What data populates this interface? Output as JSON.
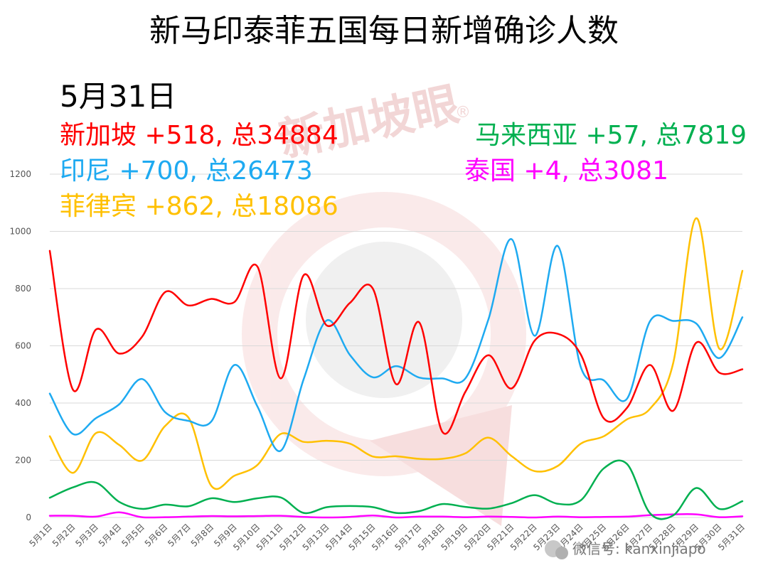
{
  "chart_data": {
    "type": "line",
    "title": "新马印泰菲五国每日新增确诊人数",
    "date_label": "5月31日",
    "ylim": [
      0,
      1200
    ],
    "yticks": [
      0,
      200,
      400,
      600,
      800,
      1000,
      1200
    ],
    "grid": true,
    "categories": [
      "5月1日",
      "5月2日",
      "5月3日",
      "5月4日",
      "5月5日",
      "5月6日",
      "5月7日",
      "5月8日",
      "5月9日",
      "5月10日",
      "5月11日",
      "5月12日",
      "5月13日",
      "5月14日",
      "5月15日",
      "5月16日",
      "5月17日",
      "5月18日",
      "5月19日",
      "5月20日",
      "5月21日",
      "5月22日",
      "5月23日",
      "5月24日",
      "5月25日",
      "5月26日",
      "5月27日",
      "5月28日",
      "5月29日",
      "5月30日",
      "5月31日"
    ],
    "series": [
      {
        "name": "新加坡",
        "color": "#ff0000",
        "values": [
          932,
          447,
          657,
          573,
          632,
          788,
          741,
          764,
          753,
          876,
          486,
          847,
          671,
          750,
          799,
          466,
          682,
          300,
          439,
          567,
          451,
          618,
          642,
          570,
          346,
          383,
          533,
          373,
          611,
          506,
          518
        ],
        "summary": "新加坡 +518, 总34884"
      },
      {
        "name": "印尼",
        "color": "#1eaaf1",
        "values": [
          433,
          292,
          347,
          395,
          484,
          368,
          338,
          336,
          533,
          387,
          233,
          484,
          689,
          568,
          490,
          529,
          489,
          486,
          486,
          693,
          973,
          635,
          949,
          526,
          479,
          415,
          686,
          687,
          678,
          557,
          700
        ],
        "summary": "印尼 +700, 总26473"
      },
      {
        "name": "菲律宾",
        "color": "#ffc000",
        "values": [
          284,
          156,
          295,
          254,
          199,
          320,
          350,
          110,
          146,
          184,
          292,
          264,
          268,
          258,
          213,
          214,
          205,
          205,
          224,
          279,
          215,
          162,
          180,
          258,
          284,
          343,
          380,
          539,
          1046,
          590,
          862
        ],
        "summary": "菲律宾 +862, 总18086"
      },
      {
        "name": "马来西亚",
        "color": "#00b050",
        "values": [
          69,
          105,
          122,
          55,
          30,
          45,
          39,
          67,
          54,
          67,
          70,
          16,
          36,
          40,
          36,
          16,
          22,
          47,
          37,
          31,
          50,
          78,
          48,
          60,
          172,
          187,
          15,
          7,
          103,
          30,
          57
        ],
        "summary": "马来西亚 +57, 总7819"
      },
      {
        "name": "泰国",
        "color": "#ff00ff",
        "values": [
          6,
          6,
          3,
          18,
          1,
          1,
          3,
          5,
          4,
          5,
          6,
          2,
          0,
          2,
          7,
          0,
          3,
          3,
          1,
          3,
          2,
          0,
          3,
          1,
          2,
          3,
          8,
          11,
          11,
          1,
          4
        ],
        "summary": "泰国 +4, 总3081"
      }
    ]
  },
  "watermark": {
    "text": "新加坡眼",
    "mark": "®"
  },
  "footer": {
    "text": "微信号: kanxinjiapo"
  }
}
